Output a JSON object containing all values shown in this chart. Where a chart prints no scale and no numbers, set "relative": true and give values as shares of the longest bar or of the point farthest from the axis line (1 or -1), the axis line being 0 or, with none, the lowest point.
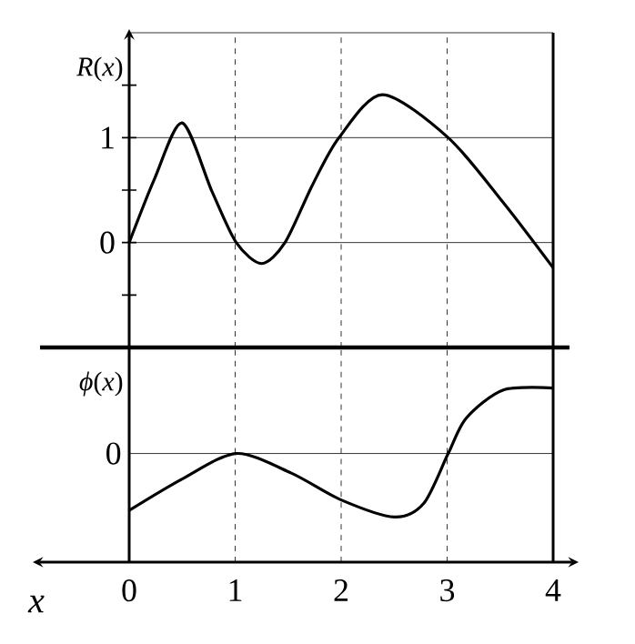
{
  "chart_data": [
    {
      "type": "line",
      "ylabel": "*R*(*x*)",
      "color": "#000000",
      "xlim": [
        0,
        4
      ],
      "ylim": [
        -1,
        2
      ],
      "tick_labels": "y",
      "yticks": [
        {
          "value": -0.5,
          "label": null
        },
        0,
        {
          "value": 0.5,
          "label": null
        },
        1,
        {
          "value": 1.5,
          "label": null
        }
      ],
      "x": [
        0,
        0.24,
        0.5,
        0.78,
        1.01,
        1.25,
        1.47,
        1.73,
        1.98,
        2.39,
        3.01,
        3.53,
        4
      ],
      "values": [
        0,
        0.61,
        1.14,
        0.49,
        0,
        -0.2,
        0,
        0.55,
        1.0,
        1.41,
        1.0,
        0.38,
        -0.24
      ],
      "ref_lines": [
        {
          "axis": "y",
          "value": 0
        },
        {
          "axis": "y",
          "value": 1
        },
        {
          "axis": "x",
          "value": 1,
          "line_style": "dashed"
        },
        {
          "axis": "x",
          "value": 2,
          "line_style": "dashed"
        },
        {
          "axis": "x",
          "value": 3,
          "line_style": "dashed"
        }
      ]
    },
    {
      "type": "line",
      "ylabel": "*ϕ*(*x*)",
      "xlabel": "x",
      "color": "#000000",
      "relative": true,
      "xlim": [
        0,
        4
      ],
      "xticks": [
        0,
        1,
        2,
        3,
        4
      ],
      "tick_labels": "x",
      "x": [
        0,
        0.5,
        1.01,
        1.53,
        2,
        2.5,
        2.78,
        3.01,
        3.18,
        3.53,
        4
      ],
      "values": [
        -0.87,
        -0.39,
        0,
        -0.3,
        -0.71,
        -0.97,
        -0.76,
        0,
        0.54,
        0.97,
        1
      ],
      "annotations": [
        {
          "text": "0",
          "x": 0,
          "y": 0
        }
      ],
      "ref_lines": [
        {
          "axis": "y",
          "value": 0
        },
        {
          "axis": "x",
          "value": 1,
          "line_style": "dashed"
        },
        {
          "axis": "x",
          "value": 2,
          "line_style": "dashed"
        },
        {
          "axis": "x",
          "value": 3,
          "line_style": "dashed"
        }
      ]
    }
  ]
}
